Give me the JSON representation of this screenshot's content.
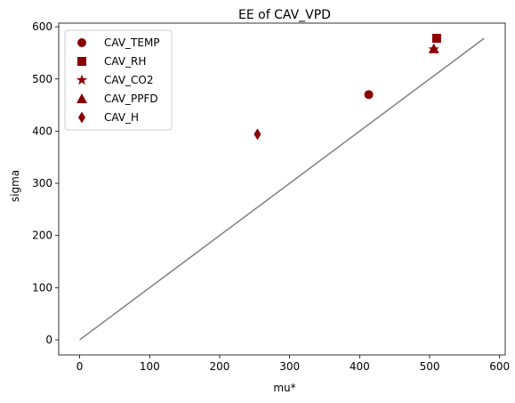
{
  "chart_data": {
    "type": "scatter",
    "title": "EE of CAV_VPD",
    "xlabel": "mu*",
    "ylabel": "sigma",
    "xlim": [
      -30,
      608
    ],
    "ylim": [
      -29,
      607
    ],
    "xticks": [
      0,
      100,
      200,
      300,
      400,
      500,
      600
    ],
    "yticks": [
      0,
      100,
      200,
      300,
      400,
      500,
      600
    ],
    "grid": false,
    "legend_position": "top-left",
    "marker_color": "#8b0000",
    "reference_line": {
      "color": "#808080",
      "x": [
        0,
        578
      ],
      "y": [
        0,
        578
      ]
    },
    "series": [
      {
        "name": "CAV_TEMP",
        "marker": "circle",
        "x": 413,
        "y": 470
      },
      {
        "name": "CAV_RH",
        "marker": "square",
        "x": 510,
        "y": 578
      },
      {
        "name": "CAV_CO2",
        "marker": "star",
        "x": 506,
        "y": 557
      },
      {
        "name": "CAV_PPFD",
        "marker": "triangle",
        "x": 506,
        "y": 558
      },
      {
        "name": "CAV_H",
        "marker": "diamond",
        "x": 254,
        "y": 394
      }
    ]
  }
}
